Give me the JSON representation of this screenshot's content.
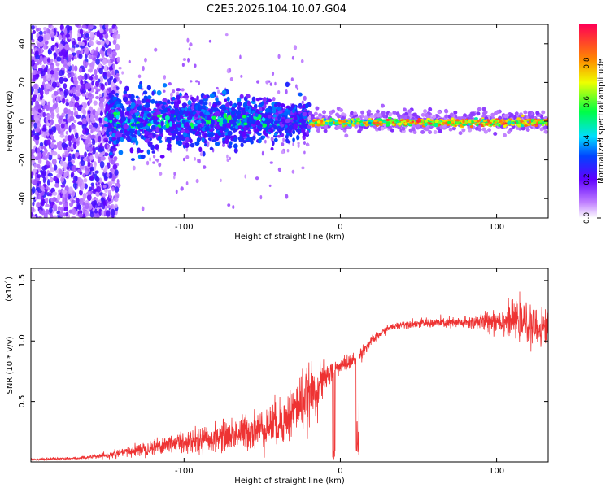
{
  "title": "C2E5.2026.104.10.07.G04",
  "chart_data": [
    {
      "type": "heatmap",
      "xlabel": "Height of straight line (km)",
      "ylabel": "Frequency (Hz)",
      "xlim": [
        -198,
        133
      ],
      "ylim": [
        -50,
        50
      ],
      "xticks": [
        -100,
        0,
        100
      ],
      "xtick_labels": [
        "-100",
        "0",
        "100"
      ],
      "yticks": [
        -40,
        -20,
        0,
        20,
        40
      ],
      "ytick_labels": [
        "-40",
        "-20",
        "0",
        "20",
        "40"
      ],
      "colorbar": {
        "label": "Normalized spectral amplitude",
        "range": [
          0,
          1
        ],
        "ticks": [
          0.0,
          0.2,
          0.4,
          0.6,
          0.8
        ],
        "tick_labels": [
          "0.0",
          "0.2",
          "0.4",
          "0.6",
          "0.8"
        ]
      },
      "regions": [
        {
          "x_range": [
            -198,
            -150
          ],
          "freq_spread": 50,
          "amplitude": 0.15,
          "description": "noise"
        },
        {
          "x_range": [
            -150,
            -20
          ],
          "freq_spread": 8,
          "amplitude": 0.35
        },
        {
          "x_range": [
            -20,
            133
          ],
          "freq_spread": 2,
          "amplitude": 0.8
        }
      ]
    },
    {
      "type": "line",
      "xlabel": "Height of straight line (km)",
      "ylabel": "SNR (10 * v/v)",
      "scale_label_prefix": "(x10",
      "scale_label_exp": "4",
      "scale_label_suffix": ")",
      "xlim": [
        -198,
        133
      ],
      "ylim": [
        0,
        1.6
      ],
      "xticks": [
        -100,
        0,
        100
      ],
      "xtick_labels": [
        "-100",
        "0",
        "100"
      ],
      "yticks": [
        0.5,
        1.0,
        1.5
      ],
      "ytick_labels": [
        "0.5",
        "1.0",
        "1.5"
      ],
      "series": [
        {
          "name": "SNR",
          "color": "#ee3333",
          "x": [
            -198,
            -170,
            -150,
            -130,
            -110,
            -90,
            -70,
            -50,
            -35,
            -25,
            -15,
            -8,
            -2,
            5,
            10,
            20,
            30,
            40,
            60,
            80,
            100,
            115,
            125,
            133
          ],
          "y": [
            0.02,
            0.03,
            0.05,
            0.1,
            0.15,
            0.18,
            0.22,
            0.28,
            0.35,
            0.5,
            0.6,
            0.72,
            0.78,
            0.82,
            0.85,
            1.0,
            1.1,
            1.14,
            1.15,
            1.15,
            1.17,
            1.17,
            1.1,
            1.12
          ],
          "noise_amplitude": [
            0.01,
            0.01,
            0.02,
            0.05,
            0.08,
            0.1,
            0.13,
            0.16,
            0.2,
            0.25,
            0.2,
            0.1,
            0.06,
            0.06,
            0.06,
            0.04,
            0.03,
            0.03,
            0.04,
            0.05,
            0.1,
            0.15,
            0.15,
            0.15
          ]
        }
      ]
    }
  ]
}
